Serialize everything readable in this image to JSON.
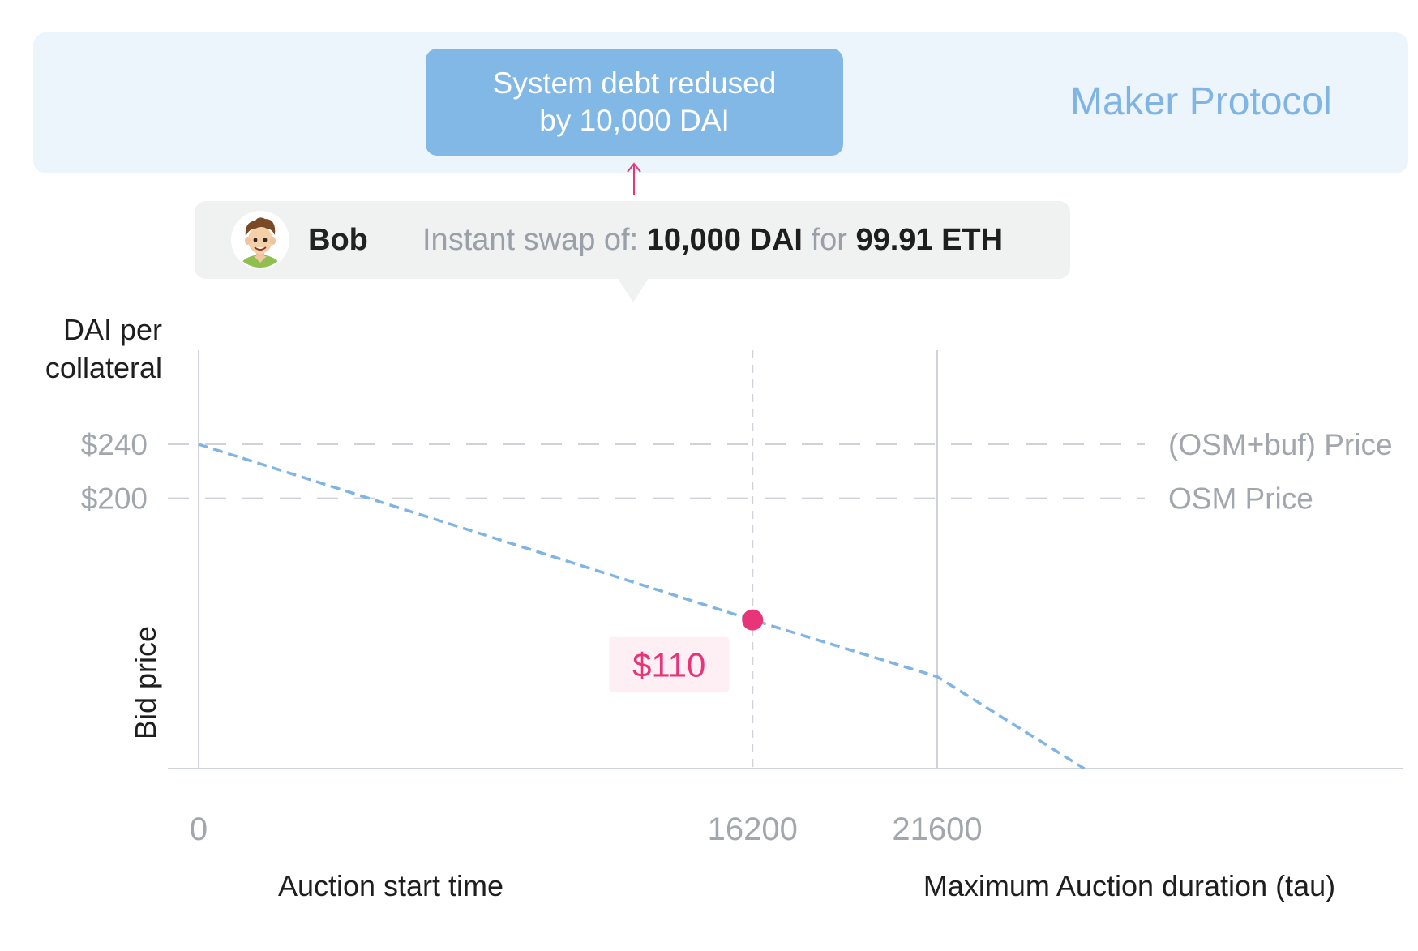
{
  "protocol": {
    "label": "Maker Protocol",
    "debt_lines": [
      "System debt redused",
      "by 10,000 DAI"
    ]
  },
  "swap": {
    "user": "Bob",
    "avatar_icon": "bob-avatar-icon",
    "prefix": "Instant swap of:",
    "amount_dai": "10,000 DAI",
    "connector": "for",
    "amount_eth": "99.91 ETH"
  },
  "chart_data": {
    "type": "line",
    "y_title_lines": [
      "DAI per",
      "collateral"
    ],
    "y_rotated_label": "Bid price",
    "y_ticks": [
      {
        "value": 240,
        "label": "$240",
        "reference_label": "(OSM+buf) Price"
      },
      {
        "value": 200,
        "label": "$200",
        "reference_label": "OSM Price"
      }
    ],
    "x_ticks": [
      {
        "value": 0,
        "label": "0",
        "caption": "Auction start time"
      },
      {
        "value": 16200,
        "label": "16200",
        "caption": ""
      },
      {
        "value": 21600,
        "label": "21600",
        "caption": "Maximum Auction duration (tau)"
      }
    ],
    "xlim": [
      0,
      21600
    ],
    "ylim": [
      0,
      240
    ],
    "series": [
      {
        "values_x": [
          0,
          16200,
          21600,
          25900
        ],
        "values_y": [
          240,
          110,
          68,
          0
        ]
      }
    ],
    "highlight": {
      "x": 16200,
      "y": 110,
      "label": "$110"
    },
    "colors": {
      "price_line": "#7fb4e4",
      "highlight": "#e8357a",
      "highlight_label_bg": "#fdeff4",
      "gridline": "#cfd2d6",
      "tick_text": "#a2a7ae",
      "label_text": "#1e1e1e"
    }
  }
}
